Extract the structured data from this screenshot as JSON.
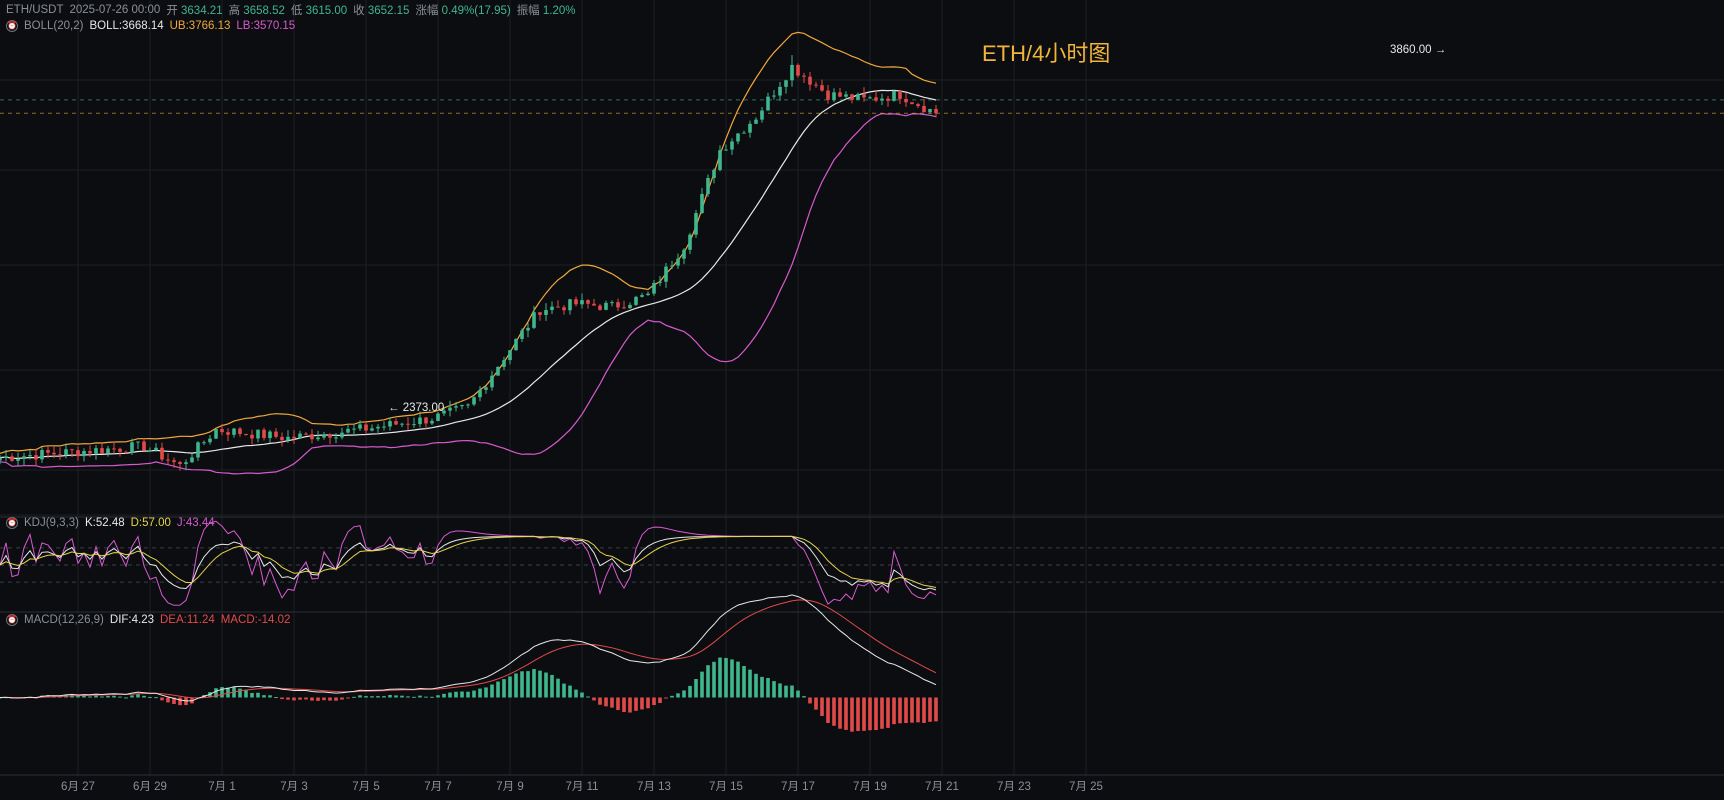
{
  "header": {
    "symbol": "ETH/USDT",
    "datetime": "2025-07-26 00:00",
    "open_label": "开",
    "open": "3634.21",
    "high_label": "高",
    "high": "3658.52",
    "low_label": "低",
    "low": "3615.00",
    "close_label": "收",
    "close": "3652.15",
    "change_label": "涨幅",
    "change": "0.49%(17.95)",
    "amp_label": "振幅",
    "amp": "1.20%"
  },
  "boll": {
    "label": "BOLL(20,2)",
    "mid": "BOLL:3668.14",
    "ub": "UB:3766.13",
    "lb": "LB:3570.15"
  },
  "kdj": {
    "label": "KDJ(9,3,3)",
    "k": "K:52.48",
    "d": "D:57.00",
    "j": "J:43.44"
  },
  "macd": {
    "label": "MACD(12,26,9)",
    "dif": "DIF:4.23",
    "dea": "DEA:11.24",
    "macd": "MACD:-14.02"
  },
  "title": "ETH/4小时图",
  "annotations": {
    "high": "3860.00",
    "low": "2373.00"
  },
  "colors": {
    "up": "#3fb68b",
    "down": "#e24a4a",
    "mid": "#e8e8e8",
    "upper": "#f0a93b",
    "lower": "#d85ad0",
    "k": "#e8e8e8",
    "d": "#e6d34a",
    "j": "#d85ad0",
    "dif": "#e8e8e8",
    "dea": "#e24a4a",
    "grid": "#1c1f25",
    "title": "#f2b43a"
  },
  "chart_data": {
    "type": "candlestick",
    "interval": "4h",
    "x_tick_labels": [
      "6月 27",
      "6月 29",
      "7月 1",
      "7月 3",
      "7月 5",
      "7月 7",
      "7月 9",
      "7月 11",
      "7月 13",
      "7月 15",
      "7月 17",
      "7月 19",
      "7月 21",
      "7月 23",
      "7月 25"
    ],
    "price_anchors": [
      {
        "d": 0,
        "p": 2420
      },
      {
        "d": 2,
        "p": 2440
      },
      {
        "d": 4,
        "p": 2460
      },
      {
        "d": 5,
        "p": 2390
      },
      {
        "d": 6,
        "p": 2520
      },
      {
        "d": 8,
        "p": 2490
      },
      {
        "d": 10,
        "p": 2520
      },
      {
        "d": 12,
        "p": 2560
      },
      {
        "d": 13,
        "p": 2600
      },
      {
        "d": 14,
        "p": 2780
      },
      {
        "d": 15,
        "p": 2950
      },
      {
        "d": 16,
        "p": 2970
      },
      {
        "d": 17,
        "p": 2960
      },
      {
        "d": 18,
        "p": 3000
      },
      {
        "d": 19,
        "p": 3180
      },
      {
        "d": 20,
        "p": 3520
      },
      {
        "d": 21,
        "p": 3640
      },
      {
        "d": 22,
        "p": 3820
      },
      {
        "d": 23,
        "p": 3720
      },
      {
        "d": 24,
        "p": 3700
      },
      {
        "d": 25,
        "p": 3720
      },
      {
        "d": 26,
        "p": 3652
      }
    ],
    "high": 3860.0,
    "low": 2373.0,
    "kdj_params": [
      9,
      3,
      3
    ],
    "macd_params": [
      12,
      26,
      9
    ],
    "boll_params": [
      20,
      2
    ]
  }
}
